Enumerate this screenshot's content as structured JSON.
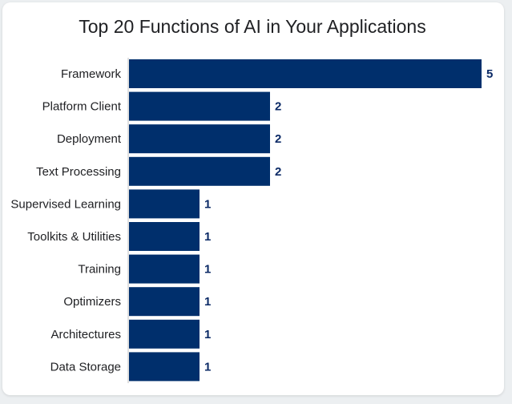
{
  "chart_data": {
    "type": "bar",
    "orientation": "horizontal",
    "title": "Top 20 Functions of AI in Your Applications",
    "categories": [
      "Framework",
      "Platform Client",
      "Deployment",
      "Text Processing",
      "Supervised Learning",
      "Toolkits & Utilities",
      "Training",
      "Optimizers",
      "Architectures",
      "Data Storage"
    ],
    "values": [
      5,
      2,
      2,
      2,
      1,
      1,
      1,
      1,
      1,
      1
    ],
    "xlim": [
      0,
      5
    ],
    "grid": false,
    "bar_color": "#002f6c",
    "value_label_color": "#0b2a66"
  }
}
